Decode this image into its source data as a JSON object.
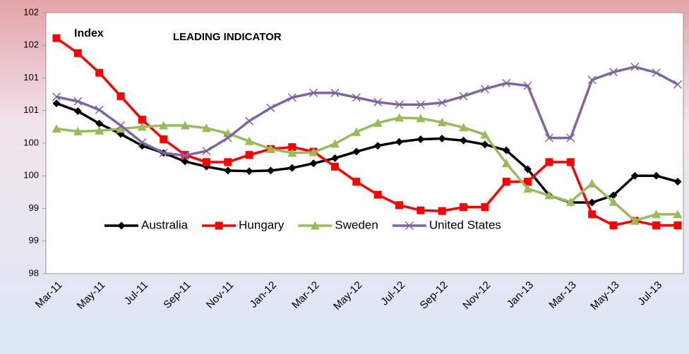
{
  "chart_data": {
    "type": "line",
    "title": "LEADING INDICATOR",
    "y_label": "Index",
    "categories": [
      "Mar-11",
      null,
      "May-11",
      null,
      "Jul-11",
      null,
      "Sep-11",
      null,
      "Nov-11",
      null,
      "Jan-12",
      null,
      "Mar-12",
      null,
      "May-12",
      null,
      "Jul-12",
      null,
      "Sep-12",
      null,
      "Nov-12",
      null,
      "Jan-13",
      null,
      "Mar-13",
      null,
      "May-13",
      null,
      "Jul-13",
      null
    ],
    "ylim": [
      98,
      102
    ],
    "yticks": [
      98,
      {
        "value": 98.5,
        "label": "99"
      },
      99,
      {
        "value": 99.5,
        "label": "100"
      },
      100,
      {
        "value": 100.5,
        "label": "101"
      },
      101,
      {
        "value": 101.5,
        "label": "102"
      },
      102
    ],
    "series": [
      {
        "name": "Australia",
        "color": "#000000",
        "marker": "diamond",
        "values": [
          100.61,
          100.49,
          100.3,
          100.14,
          99.96,
          99.85,
          99.72,
          99.64,
          99.58,
          99.57,
          99.58,
          99.62,
          99.69,
          99.77,
          99.87,
          99.96,
          100.02,
          100.06,
          100.07,
          100.04,
          99.98,
          99.89,
          99.6,
          99.2,
          99.09,
          99.09,
          99.2,
          99.5,
          99.5,
          99.41
        ]
      },
      {
        "name": "Hungary",
        "color": "#ff0000",
        "marker": "square",
        "values": [
          101.61,
          101.38,
          101.08,
          100.72,
          100.36,
          100.06,
          99.82,
          99.71,
          99.71,
          99.82,
          99.91,
          99.94,
          99.87,
          99.64,
          99.41,
          99.21,
          99.05,
          98.97,
          98.96,
          99.02,
          99.02,
          99.41,
          99.41,
          99.71,
          99.71,
          98.91,
          98.74,
          98.81,
          98.74,
          98.74
        ]
      },
      {
        "name": "Sweden",
        "color": "#9bbb59",
        "marker": "triangle",
        "values": [
          100.22,
          100.18,
          100.19,
          100.22,
          100.25,
          100.27,
          100.27,
          100.23,
          100.15,
          100.03,
          99.91,
          99.85,
          99.86,
          99.99,
          100.17,
          100.31,
          100.39,
          100.38,
          100.32,
          100.24,
          100.13,
          99.69,
          99.3,
          99.2,
          99.1,
          99.38,
          99.1,
          98.81,
          98.91,
          98.91
        ]
      },
      {
        "name": "United States",
        "color": "#8064a2",
        "marker": "x",
        "values": [
          100.71,
          100.64,
          100.51,
          100.27,
          100.01,
          99.85,
          99.81,
          99.88,
          100.08,
          100.34,
          100.54,
          100.7,
          100.77,
          100.77,
          100.7,
          100.63,
          100.59,
          100.59,
          100.62,
          100.72,
          100.83,
          100.92,
          100.88,
          100.08,
          100.08,
          100.97,
          101.09,
          101.17,
          101.08,
          100.9
        ]
      }
    ]
  }
}
